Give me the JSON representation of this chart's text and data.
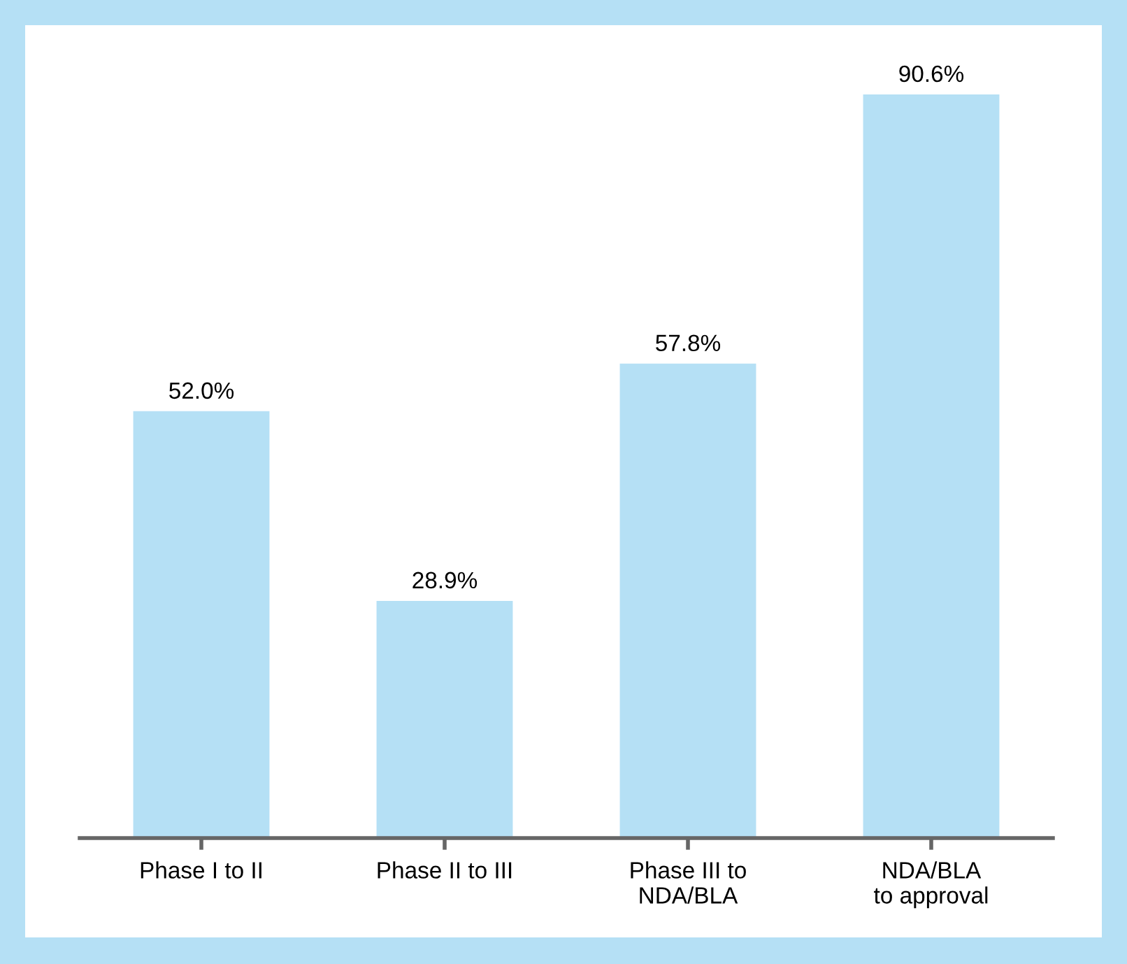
{
  "chart_data": {
    "type": "bar",
    "categories": [
      "Phase I to II",
      "Phase II to III",
      "Phase III to\nNDA/BLA",
      "NDA/BLA\nto approval"
    ],
    "values": [
      52.0,
      28.9,
      57.8,
      90.6
    ],
    "value_labels": [
      "52.0%",
      "28.9%",
      "57.8%",
      "90.6%"
    ],
    "color": "#b5e0f5",
    "legend": false
  }
}
